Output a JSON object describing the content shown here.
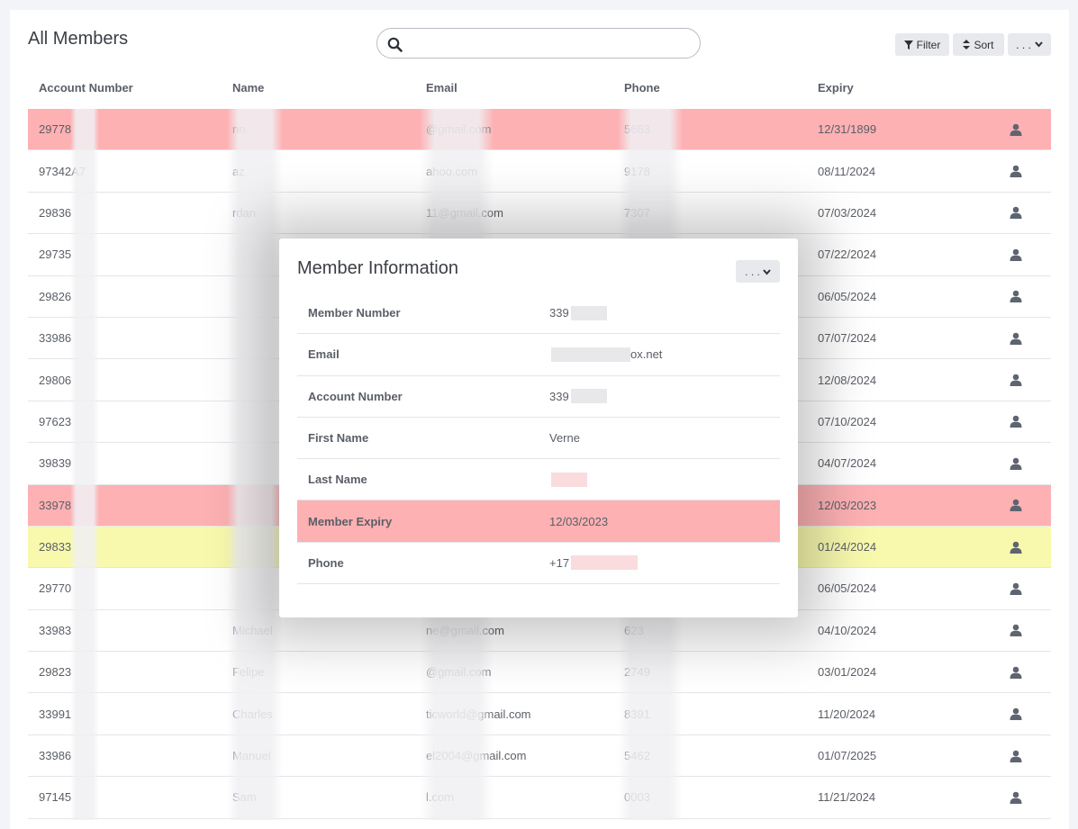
{
  "header": {
    "title": "All Members",
    "search_placeholder": "",
    "filter_label": "Filter",
    "sort_label": "Sort",
    "more_label": ". . ."
  },
  "columns": [
    "Account Number",
    "Name",
    "Email",
    "Phone",
    "Expiry"
  ],
  "rows": [
    {
      "acct": "29778",
      "name": "nn",
      "email": "@gmail.com",
      "phone": "5663",
      "expiry": "12/31/1899",
      "status": "red"
    },
    {
      "acct": "97342A7",
      "name": "az",
      "email": "ahoo.com",
      "phone": "9178",
      "expiry": "08/11/2024",
      "status": ""
    },
    {
      "acct": "29836",
      "name": "rdan",
      "email": "11@gmail.com",
      "phone": "7307",
      "expiry": "07/03/2024",
      "status": ""
    },
    {
      "acct": "29735",
      "name": "",
      "email": "",
      "phone": "",
      "expiry": "07/22/2024",
      "status": ""
    },
    {
      "acct": "29826",
      "name": "",
      "email": "",
      "phone": "",
      "expiry": "06/05/2024",
      "status": ""
    },
    {
      "acct": "33986",
      "name": "",
      "email": "",
      "phone": "",
      "expiry": "07/07/2024",
      "status": ""
    },
    {
      "acct": "29806",
      "name": "",
      "email": "",
      "phone": "",
      "expiry": "12/08/2024",
      "status": ""
    },
    {
      "acct": "97623",
      "name": "",
      "email": "",
      "phone": "",
      "expiry": "07/10/2024",
      "status": ""
    },
    {
      "acct": "39839",
      "name": "",
      "email": "",
      "phone": "",
      "expiry": "04/07/2024",
      "status": ""
    },
    {
      "acct": "33978",
      "name": "",
      "email": "",
      "phone": "",
      "expiry": "12/03/2023",
      "status": "red"
    },
    {
      "acct": "29833",
      "name": "",
      "email": "",
      "phone": "",
      "expiry": "01/24/2024",
      "status": "yellow"
    },
    {
      "acct": "29770",
      "name": "",
      "email": "",
      "phone": "",
      "expiry": "06/05/2024",
      "status": ""
    },
    {
      "acct": "33983",
      "name": "Michael",
      "email": "ne@gmail.com",
      "phone": "623",
      "expiry": "04/10/2024",
      "status": ""
    },
    {
      "acct": "29823",
      "name": "Felipe",
      "email": "@gmail.com",
      "phone": "2749",
      "expiry": "03/01/2024",
      "status": ""
    },
    {
      "acct": "33991",
      "name": "Charles",
      "email": "ticworld@gmail.com",
      "phone": "8391",
      "expiry": "11/20/2024",
      "status": ""
    },
    {
      "acct": "33986",
      "name": "Manuel",
      "email": "el2004@gmail.com",
      "phone": "5462",
      "expiry": "01/07/2025",
      "status": ""
    },
    {
      "acct": "97145",
      "name": "Sam",
      "email": "l.com",
      "phone": "0003",
      "expiry": "11/21/2024",
      "status": ""
    }
  ],
  "modal": {
    "title": "Member Information",
    "menu_label": ". . .",
    "fields": [
      {
        "label": "Member Number",
        "value": "339",
        "status": ""
      },
      {
        "label": "Email",
        "value": "ox.net",
        "status": ""
      },
      {
        "label": "Account Number",
        "value": "339",
        "status": ""
      },
      {
        "label": "First Name",
        "value": "Verne",
        "status": ""
      },
      {
        "label": "Last Name",
        "value": "",
        "status": ""
      },
      {
        "label": "Member Expiry",
        "value": "12/03/2023",
        "status": "red"
      },
      {
        "label": "Phone",
        "value": "+17",
        "status": ""
      }
    ]
  },
  "colors": {
    "expired": "#fdb1b3",
    "expiring": "#f8f9ad",
    "button_bg": "#e8e9ec"
  },
  "icons": {
    "search": "search-icon",
    "filter": "funnel-icon",
    "sort": "sort-icon",
    "chevron": "chevron-down-icon",
    "member": "user-icon"
  }
}
